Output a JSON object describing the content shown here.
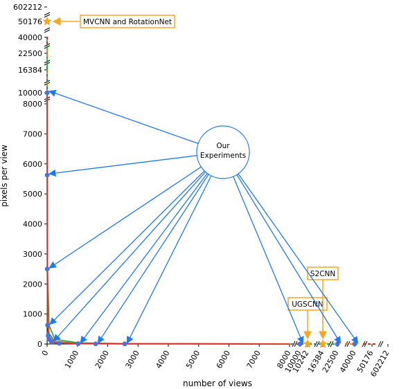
{
  "chart_data": {
    "type": "line",
    "xlabel": "number of views",
    "ylabel": "pixels per view",
    "y_main_ticks": [
      0,
      1000,
      2000,
      3000,
      4000,
      5000,
      6000,
      7000,
      8000
    ],
    "y_broken_ticks": [
      "10000",
      "16384",
      "22500",
      "40000",
      "50176",
      "602212"
    ],
    "x_main_ticks": [
      0,
      1000,
      2000,
      3000,
      4000,
      5000,
      6000,
      7000,
      8000
    ],
    "x_broken_ticks": [
      "10000",
      "10242",
      "16384",
      "22500",
      "40000",
      "50176",
      "602212"
    ],
    "series": [
      {
        "color": "#1f77b4",
        "values": [
          [
            1,
            10000
          ],
          [
            2,
            5625
          ],
          [
            4,
            2500
          ],
          [
            16,
            625
          ],
          [
            64,
            156
          ],
          [
            144,
            69
          ],
          [
            256,
            39
          ],
          [
            400,
            25
          ],
          [
            1024,
            10
          ],
          [
            1600,
            6
          ],
          [
            2560,
            4
          ],
          [
            8000,
            1
          ],
          [
            10000,
            1
          ]
        ]
      },
      {
        "color": "#2c7b99",
        "values": [
          [
            1,
            22500
          ],
          [
            4,
            5625
          ],
          [
            16,
            1406
          ],
          [
            64,
            352
          ],
          [
            256,
            88
          ],
          [
            1024,
            22
          ],
          [
            2560,
            9
          ],
          [
            8000,
            3
          ],
          [
            10000,
            2
          ]
        ]
      },
      {
        "color": "#2ca02c",
        "values": [
          [
            1,
            40000
          ],
          [
            4,
            10000
          ],
          [
            16,
            2500
          ],
          [
            64,
            625
          ],
          [
            256,
            156
          ],
          [
            1024,
            39
          ],
          [
            2560,
            16
          ],
          [
            8000,
            5
          ],
          [
            10000,
            4
          ]
        ]
      },
      {
        "color": "#ff7f0e",
        "values": [
          [
            1,
            16384
          ],
          [
            4,
            4096
          ],
          [
            16,
            1024
          ],
          [
            64,
            256
          ],
          [
            256,
            64
          ],
          [
            1024,
            16
          ],
          [
            2560,
            6
          ],
          [
            8000,
            2
          ],
          [
            10000,
            2
          ]
        ]
      },
      {
        "color": "#d62728",
        "values": [
          [
            1,
            10000
          ],
          [
            4,
            2500
          ],
          [
            16,
            625
          ],
          [
            64,
            156
          ],
          [
            256,
            39
          ],
          [
            1024,
            10
          ],
          [
            2560,
            4
          ],
          [
            8000,
            1
          ]
        ]
      }
    ],
    "points_ours": [
      [
        1,
        10000
      ],
      [
        2,
        5625
      ],
      [
        4,
        2500
      ],
      [
        16,
        625
      ],
      [
        36,
        278
      ],
      [
        64,
        156
      ],
      [
        144,
        69
      ],
      [
        400,
        25
      ],
      [
        1024,
        10
      ],
      [
        1600,
        6
      ],
      [
        2560,
        4
      ],
      [
        10000,
        1
      ],
      [
        22500,
        1
      ],
      [
        40000,
        1
      ]
    ],
    "points_literature": [
      {
        "label": "MVCNN and RotationNet",
        "x": 1,
        "y": 50176
      },
      {
        "label": "UGSCNN",
        "x": 10242,
        "y": 1
      },
      {
        "label": "S2CNN",
        "x": 16384,
        "y": 1
      }
    ],
    "annotation_center": "Our\nExperiments"
  },
  "labels": {
    "mvcnn": "MVCNN and RotationNet",
    "ugscnn": "UGSCNN",
    "s2cnn": "S2CNN",
    "ours_line1": "Our",
    "ours_line2": "Experiments"
  },
  "colors": {
    "ours_point": "#4a6fe0",
    "star": "#f7a620",
    "box_border": "#f7a620",
    "arrow_blue": "#1e78f0",
    "arrow_orange": "#f7a620"
  }
}
